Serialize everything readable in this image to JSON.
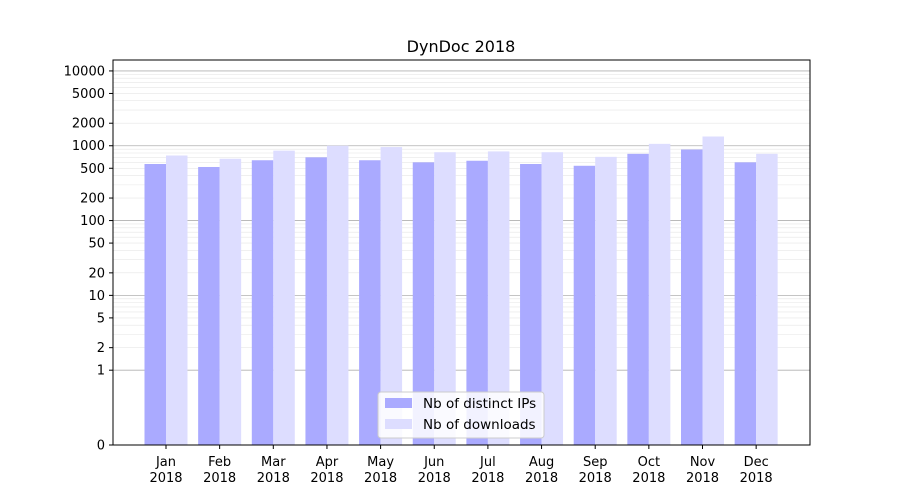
{
  "chart_data": {
    "type": "bar",
    "title": "DynDoc 2018",
    "xlabel": "",
    "ylabel": "",
    "yscale": "symlog",
    "ylim": [
      0,
      14000
    ],
    "y_ticks": [
      0,
      1,
      2,
      5,
      10,
      20,
      50,
      100,
      200,
      500,
      1000,
      2000,
      5000,
      10000
    ],
    "y_tick_labels": [
      "0",
      "1",
      "2",
      "5",
      "10",
      "20",
      "50",
      "100",
      "200",
      "500",
      "1000",
      "2000",
      "5000",
      "10000"
    ],
    "grid": true,
    "legend_position": "bottom-center",
    "categories": [
      [
        "Jan",
        "2018"
      ],
      [
        "Feb",
        "2018"
      ],
      [
        "Mar",
        "2018"
      ],
      [
        "Apr",
        "2018"
      ],
      [
        "May",
        "2018"
      ],
      [
        "Jun",
        "2018"
      ],
      [
        "Jul",
        "2018"
      ],
      [
        "Aug",
        "2018"
      ],
      [
        "Sep",
        "2018"
      ],
      [
        "Oct",
        "2018"
      ],
      [
        "Nov",
        "2018"
      ],
      [
        "Dec",
        "2018"
      ]
    ],
    "series": [
      {
        "name": "Nb of distinct IPs",
        "color": "#aaaaff",
        "values": [
          570,
          520,
          640,
          700,
          640,
          600,
          630,
          570,
          540,
          780,
          890,
          600
        ]
      },
      {
        "name": "Nb of downloads",
        "color": "#ddddff",
        "values": [
          740,
          670,
          860,
          1000,
          960,
          820,
          840,
          820,
          710,
          1060,
          1330,
          780
        ]
      }
    ]
  }
}
